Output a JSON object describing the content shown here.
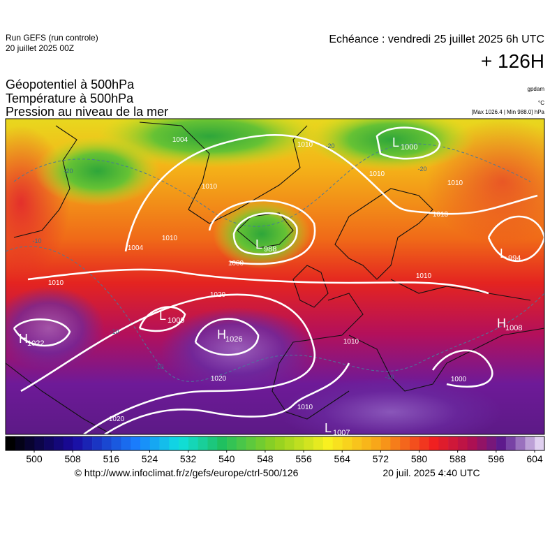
{
  "header": {
    "run": "Run GEFS (run controle)",
    "run_date": "20 juillet 2025 00Z",
    "valid": "Echéance : vendredi 25 juillet 2025 6h UTC",
    "lead": "+ 126H"
  },
  "titles": [
    "Géopotentiel à 500hPa",
    "Température à 500hPa",
    "Pression au niveau de la mer"
  ],
  "units": [
    "gpdam",
    "°C",
    "[Max 1026.4 | Min 988.0] hPa"
  ],
  "pressure_centers": [
    {
      "type": "L",
      "value": "1000"
    },
    {
      "type": "L",
      "value": "988"
    },
    {
      "type": "L",
      "value": "994"
    },
    {
      "type": "L",
      "value": "1009"
    },
    {
      "type": "H",
      "value": "1026"
    },
    {
      "type": "H",
      "value": "1022"
    },
    {
      "type": "H",
      "value": "1008"
    },
    {
      "type": "L",
      "value": "1007"
    }
  ],
  "isobar_labels": [
    "1004",
    "1010",
    "1010",
    "1010",
    "1013",
    "1010",
    "1004",
    "1010",
    "1000",
    "1010",
    "1020",
    "1010",
    "1010",
    "1020",
    "1000",
    "1010",
    "1020"
  ],
  "isotherm_labels": [
    "-20",
    "-20",
    "-20",
    "-10",
    "-10",
    "-10",
    "-10"
  ],
  "colorbar": {
    "ticks": [
      500,
      508,
      516,
      524,
      532,
      540,
      548,
      556,
      564,
      572,
      580,
      588,
      596,
      604
    ]
  },
  "footer": {
    "url": "© http://www.infoclimat.fr/z/gefs/europe/ctrl-500/126",
    "generated": "20 juil. 2025  4:40 UTC"
  }
}
